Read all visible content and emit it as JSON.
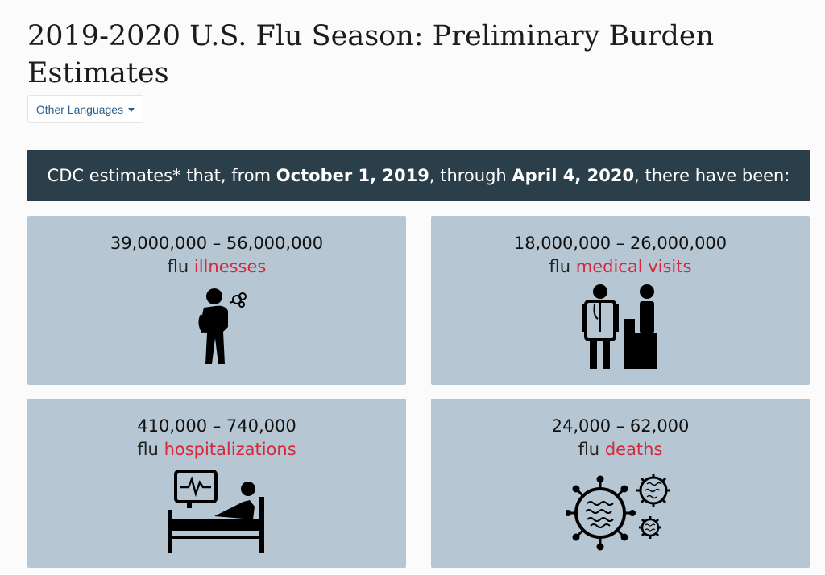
{
  "title": "2019-2020 U.S. Flu Season: Preliminary Burden Estimates",
  "other_languages": "Other Languages",
  "banner": {
    "prefix": "CDC estimates* that, from ",
    "start_date": "October 1, 2019",
    "middle": ", through ",
    "end_date": "April 4, 2020",
    "suffix": ", there have been:"
  },
  "cards": [
    {
      "range": "39,000,000 – 56,000,000",
      "prefix": "flu",
      "label": "illnesses",
      "icon": "sick-person-icon"
    },
    {
      "range": "18,000,000 – 26,000,000",
      "prefix": "flu",
      "label": "medical visits",
      "icon": "doctor-patient-icon"
    },
    {
      "range": "410,000 – 740,000",
      "prefix": "flu",
      "label": "hospitalizations",
      "icon": "hospital-bed-icon"
    },
    {
      "range": "24,000 – 62,000",
      "prefix": "flu",
      "label": "deaths",
      "icon": "virus-icon"
    }
  ],
  "colors": {
    "banner_bg": "#2b3f4a",
    "card_bg": "#b6c7d3",
    "accent_red": "#d6283a"
  }
}
